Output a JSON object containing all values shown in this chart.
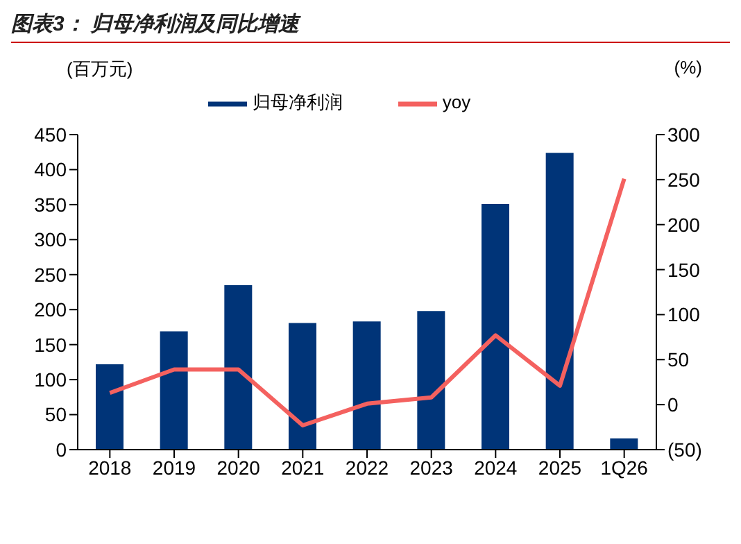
{
  "chart_data": {
    "type": "bar",
    "title": "图表3： 归母净利润及同比增速",
    "ylabel": "(百万元)",
    "y2label": "(%)",
    "categories": [
      "2018",
      "2019",
      "2020",
      "2021",
      "2022",
      "2023",
      "2024",
      "2025",
      "1Q26"
    ],
    "series": [
      {
        "name": "归母净利润",
        "color": "#003478",
        "values": [
          122,
          169,
          235,
          181,
          183,
          198,
          351,
          424,
          16
        ]
      },
      {
        "name": "yoy",
        "type": "line",
        "axis": "y2",
        "color": "#f4615f",
        "values": [
          13,
          39,
          39,
          -23,
          1,
          8,
          77,
          21,
          251
        ]
      }
    ],
    "ylim": [
      0,
      450
    ],
    "yticks": [
      0,
      50,
      100,
      150,
      200,
      250,
      300,
      350,
      400,
      450
    ],
    "y2lim": [
      -50,
      300
    ],
    "y2ticks": [
      {
        "value": -50,
        "label": "(50)"
      },
      0,
      50,
      100,
      150,
      200,
      250,
      300
    ],
    "grid": false,
    "legend": "top",
    "marker": "none",
    "line_style": "solid"
  }
}
